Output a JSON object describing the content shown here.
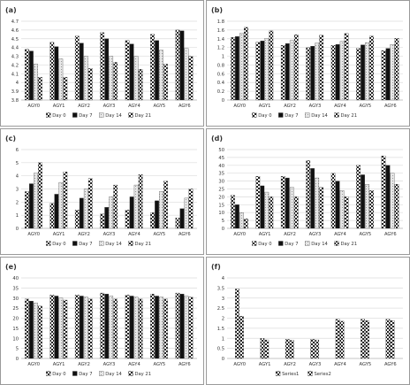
{
  "chart_data": [
    {
      "panel_label": "(a)",
      "type": "bar",
      "categories": [
        "AGY0",
        "AGY1",
        "AGY2",
        "AGY3",
        "AGY4",
        "AGY5",
        "AGY6"
      ],
      "ylim": [
        3.8,
        4.7
      ],
      "yticks": [
        "3.8",
        "3.9",
        "4",
        "4.1",
        "4.2",
        "4.3",
        "4.4",
        "4.5",
        "4.6",
        "4.7"
      ],
      "grid": true,
      "legend": "bottom",
      "series": [
        {
          "name": "Day 0",
          "pattern": "checker",
          "values": [
            4.38,
            4.46,
            4.53,
            4.57,
            4.48,
            4.55,
            4.6
          ]
        },
        {
          "name": "Day 7",
          "pattern": "solid",
          "values": [
            4.36,
            4.41,
            4.45,
            4.5,
            4.44,
            4.48,
            4.59
          ]
        },
        {
          "name": "Day 14",
          "pattern": "light",
          "values": [
            4.21,
            4.27,
            4.3,
            4.3,
            4.3,
            4.37,
            4.39
          ]
        },
        {
          "name": "Day 21",
          "pattern": "checker",
          "values": [
            4.06,
            4.06,
            4.16,
            4.23,
            4.15,
            4.21,
            4.3
          ]
        }
      ]
    },
    {
      "panel_label": "(b)",
      "type": "bar",
      "categories": [
        "AGY0",
        "AGY1",
        "AGY2",
        "AGY3",
        "AGY4",
        "AGY5",
        "AGY6"
      ],
      "ylim": [
        0,
        1.8
      ],
      "yticks": [
        "0",
        "0.2",
        "0.4",
        "0.6",
        "0.8",
        "1",
        "1.2",
        "1.4",
        "1.6",
        "1.8"
      ],
      "grid": true,
      "legend": "bottom",
      "series": [
        {
          "name": "Day 0",
          "pattern": "checker",
          "values": [
            1.43,
            1.32,
            1.25,
            1.2,
            1.25,
            1.18,
            1.13
          ]
        },
        {
          "name": "Day 7",
          "pattern": "solid",
          "values": [
            1.45,
            1.35,
            1.29,
            1.23,
            1.27,
            1.26,
            1.18
          ]
        },
        {
          "name": "Day 14",
          "pattern": "light",
          "values": [
            1.52,
            1.41,
            1.36,
            1.3,
            1.34,
            1.31,
            1.27
          ]
        },
        {
          "name": "Day 21",
          "pattern": "checker",
          "values": [
            1.66,
            1.58,
            1.49,
            1.48,
            1.52,
            1.46,
            1.41
          ]
        }
      ]
    },
    {
      "panel_label": "(c)",
      "type": "bar",
      "categories": [
        "AGY0",
        "AGY1",
        "AGY2",
        "AGY3",
        "AGY4",
        "AGY5",
        "AGY6"
      ],
      "ylim": [
        0,
        6
      ],
      "yticks": [
        "0",
        "1",
        "2",
        "3",
        "4",
        "5",
        "6"
      ],
      "grid": true,
      "legend": "bottom",
      "series": [
        {
          "name": "Day 0",
          "pattern": "checker",
          "values": [
            2.8,
            1.9,
            1.4,
            1.1,
            1.4,
            1.2,
            0.8
          ]
        },
        {
          "name": "Day 7",
          "pattern": "solid",
          "values": [
            3.4,
            2.6,
            2.3,
            1.6,
            2.4,
            2.1,
            1.5
          ]
        },
        {
          "name": "Day 14",
          "pattern": "light",
          "values": [
            4.2,
            3.5,
            3.0,
            2.4,
            3.3,
            2.8,
            2.3
          ]
        },
        {
          "name": "Day 21",
          "pattern": "checker",
          "values": [
            5.0,
            4.3,
            3.8,
            3.3,
            4.1,
            3.6,
            3.0
          ]
        }
      ]
    },
    {
      "panel_label": "(d)",
      "type": "bar",
      "categories": [
        "AGY0",
        "AGY1",
        "AGY2",
        "AGY3",
        "AGY4",
        "AGY5",
        "AGY6"
      ],
      "ylim": [
        0,
        50
      ],
      "yticks": [
        "0",
        "5",
        "10",
        "15",
        "20",
        "25",
        "30",
        "35",
        "40",
        "45",
        "50"
      ],
      "grid": true,
      "legend": "bottom",
      "series": [
        {
          "name": "Day 0",
          "pattern": "checker",
          "values": [
            21,
            33,
            33,
            43,
            35,
            40,
            46
          ]
        },
        {
          "name": "Day 7",
          "pattern": "solid",
          "values": [
            15,
            27,
            32,
            38,
            30,
            34,
            40
          ]
        },
        {
          "name": "Day 14",
          "pattern": "light",
          "values": [
            10,
            23,
            26,
            32,
            24,
            28,
            35
          ]
        },
        {
          "name": "Day 21",
          "pattern": "checker",
          "values": [
            6,
            20,
            20,
            26,
            20,
            24,
            28
          ]
        }
      ]
    },
    {
      "panel_label": "(e)",
      "type": "bar",
      "categories": [
        "AGY0",
        "AGY1",
        "AGY2",
        "AGY3",
        "AGY4",
        "AGY5",
        "AGY6"
      ],
      "ylim": [
        0,
        40
      ],
      "yticks": [
        "0",
        "5",
        "10",
        "15",
        "20",
        "25",
        "30",
        "35",
        "40"
      ],
      "grid": true,
      "legend": "bottom",
      "series": [
        {
          "name": "Day 0",
          "pattern": "checker",
          "values": [
            29.5,
            31.5,
            31.5,
            32.5,
            31.5,
            32,
            32.5
          ]
        },
        {
          "name": "Day 7",
          "pattern": "solid",
          "values": [
            28.5,
            31,
            31,
            32,
            31,
            31,
            32
          ]
        },
        {
          "name": "Day 14",
          "pattern": "light",
          "values": [
            27.5,
            30,
            30.5,
            31,
            30.5,
            30.5,
            31
          ]
        },
        {
          "name": "Day 21",
          "pattern": "checker",
          "values": [
            26,
            29,
            29.5,
            29.5,
            29.5,
            29.5,
            30.5
          ]
        }
      ]
    },
    {
      "panel_label": "(f)",
      "type": "bar",
      "categories": [
        "AGY0",
        "AGY1",
        "AGY2",
        "AGY3",
        "AGY4",
        "AGY5",
        "AGY6"
      ],
      "ylim": [
        0,
        4
      ],
      "yticks": [
        "0",
        "0.5",
        "1",
        "1.5",
        "2",
        "2.5",
        "3",
        "3.5",
        "4"
      ],
      "grid": true,
      "legend": "bottom",
      "series": [
        {
          "name": "Series1",
          "pattern": "checker",
          "values": [
            3.45,
            1.0,
            0.95,
            0.95,
            1.95,
            1.95,
            1.95
          ]
        },
        {
          "name": "Series2",
          "pattern": "checker",
          "values": [
            2.1,
            0.92,
            0.9,
            0.92,
            1.85,
            1.88,
            1.88
          ]
        }
      ]
    }
  ]
}
